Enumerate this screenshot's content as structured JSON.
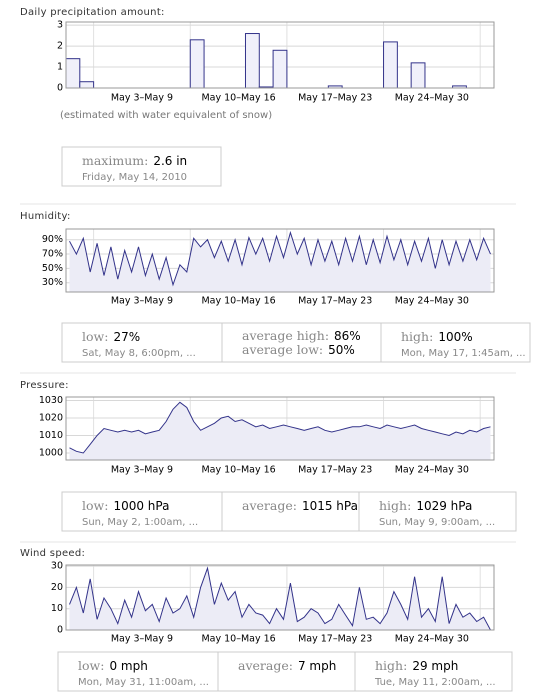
{
  "chart_data": [
    {
      "type": "bar",
      "title": "Daily precipitation amount:",
      "xtick_labels": [
        "May 3–May 9",
        "May 10–May 16",
        "May 17–May 23",
        "May 24–May 30"
      ],
      "values": [
        1.4,
        0.3,
        0,
        0,
        0,
        0,
        0,
        0,
        0,
        2.3,
        0,
        0,
        0,
        2.6,
        0.05,
        1.8,
        0,
        0,
        0,
        0.1,
        0,
        0,
        0,
        2.2,
        0,
        1.2,
        0,
        0,
        0.1,
        0,
        0
      ],
      "color": "#33338a",
      "fill": "#f0f0fa",
      "ylim": [
        0,
        3.15
      ],
      "yticks": [
        0,
        1,
        2,
        3
      ],
      "grid": true,
      "note": "(estimated with water equivalent of snow)",
      "stats": [
        {
          "items": [
            {
              "label": "maximum:",
              "value": "2.6 in"
            }
          ],
          "when": "Friday, May 14, 2010"
        }
      ]
    },
    {
      "type": "line",
      "title": "Humidity:",
      "xtick_labels": [
        "May 3–May 9",
        "May 10–May 16",
        "May 17–May 23",
        "May 24–May 30"
      ],
      "values": [
        88,
        70,
        92,
        45,
        85,
        40,
        80,
        35,
        75,
        45,
        80,
        40,
        70,
        35,
        65,
        27,
        55,
        45,
        92,
        80,
        90,
        65,
        88,
        60,
        90,
        55,
        93,
        70,
        92,
        60,
        95,
        65,
        100,
        70,
        92,
        55,
        90,
        60,
        88,
        55,
        92,
        60,
        95,
        55,
        90,
        58,
        95,
        62,
        90,
        55,
        88,
        60,
        92,
        50,
        90,
        55,
        88,
        60,
        90,
        62,
        92,
        70
      ],
      "color": "#33338a",
      "fill": "#ececf6",
      "ylim": [
        17,
        105
      ],
      "yticks": [
        {
          "value": 30,
          "label": "30%"
        },
        {
          "value": 50,
          "label": "50%"
        },
        {
          "value": 70,
          "label": "70%"
        },
        {
          "value": 90,
          "label": "90%"
        }
      ],
      "grid": true,
      "stats": [
        {
          "items": [
            {
              "label": "low:",
              "value": "27%"
            }
          ],
          "when": "Sat, May 8, 6:00pm, ..."
        },
        {
          "items": [
            {
              "label": "average high:",
              "value": "86%"
            },
            {
              "label": "average low:",
              "value": "50%"
            }
          ]
        },
        {
          "items": [
            {
              "label": "high:",
              "value": "100%"
            }
          ],
          "when": "Mon, May 17, 1:45am, ..."
        }
      ]
    },
    {
      "type": "line",
      "title": "Pressure:",
      "xtick_labels": [
        "May 3–May 9",
        "May 10–May 16",
        "May 17–May 23",
        "May 24–May 30"
      ],
      "values": [
        1003,
        1001,
        1000,
        1005,
        1010,
        1014,
        1013,
        1012,
        1013,
        1012,
        1013,
        1011,
        1012,
        1013,
        1018,
        1025,
        1029,
        1026,
        1018,
        1013,
        1015,
        1017,
        1020,
        1021,
        1018,
        1019,
        1017,
        1015,
        1016,
        1014,
        1015,
        1016,
        1015,
        1014,
        1013,
        1014,
        1015,
        1013,
        1012,
        1013,
        1014,
        1015,
        1015,
        1016,
        1015,
        1014,
        1016,
        1015,
        1014,
        1015,
        1016,
        1014,
        1013,
        1012,
        1011,
        1010,
        1012,
        1011,
        1013,
        1012,
        1014,
        1015
      ],
      "color": "#33338a",
      "fill": "#ececf6",
      "ylim": [
        996,
        1032
      ],
      "yticks": [
        1000,
        1010,
        1020,
        1030
      ],
      "grid": true,
      "stats": [
        {
          "items": [
            {
              "label": "low:",
              "value": "1000 hPa"
            }
          ],
          "when": "Sun, May 2, 1:00am, ..."
        },
        {
          "items": [
            {
              "label": "average:",
              "value": "1015 hPa"
            }
          ]
        },
        {
          "items": [
            {
              "label": "high:",
              "value": "1029 hPa"
            }
          ],
          "when": "Sun, May 9, 9:00am, ..."
        }
      ]
    },
    {
      "type": "line",
      "title": "Wind speed:",
      "xtick_labels": [
        "May 3–May 9",
        "May 10–May 16",
        "May 17–May 23",
        "May 24–May 30"
      ],
      "values": [
        12,
        20,
        8,
        24,
        5,
        15,
        10,
        3,
        14,
        6,
        18,
        9,
        12,
        4,
        15,
        8,
        10,
        16,
        6,
        20,
        29,
        12,
        22,
        14,
        18,
        6,
        12,
        8,
        7,
        3,
        10,
        5,
        22,
        4,
        6,
        10,
        8,
        3,
        5,
        12,
        7,
        2,
        20,
        5,
        6,
        3,
        8,
        18,
        12,
        5,
        25,
        6,
        10,
        4,
        25,
        3,
        12,
        6,
        8,
        4,
        6,
        0
      ],
      "color": "#33338a",
      "fill": "#ececf6",
      "ylim": [
        0,
        30.5
      ],
      "yticks": [
        0,
        10,
        20,
        30
      ],
      "grid": true,
      "stats": [
        {
          "items": [
            {
              "label": "low:",
              "value": "0 mph"
            }
          ],
          "when": "Mon, May 31, 11:00am, ..."
        },
        {
          "items": [
            {
              "label": "average:",
              "value": "7 mph"
            }
          ]
        },
        {
          "items": [
            {
              "label": "high:",
              "value": "29 mph"
            }
          ],
          "when": "Tue, May 11, 2:00am, ..."
        }
      ]
    }
  ]
}
